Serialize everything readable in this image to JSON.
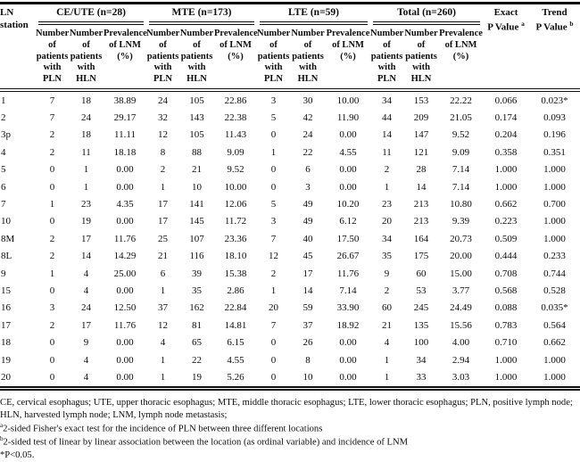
{
  "table": {
    "station_header": "LN station",
    "groups": [
      {
        "label": "CE/UTE (n=28)"
      },
      {
        "label": "MTE (n=173)"
      },
      {
        "label": "LTE (n=59)"
      },
      {
        "label": "Total (n=260)"
      }
    ],
    "subheaders": [
      "Number of patients with PLN",
      "Number of patients with HLN",
      "Prevalence of LNM (%)"
    ],
    "exact_p": {
      "line1": "Exact",
      "line2": "P Value",
      "sup": "a"
    },
    "trend_p": {
      "line1": "Trend",
      "line2": "P Value",
      "sup": "b"
    },
    "rows": [
      {
        "station": "1",
        "values": [
          "7",
          "18",
          "38.89",
          "24",
          "105",
          "22.86",
          "3",
          "30",
          "10.00",
          "34",
          "153",
          "22.22",
          "0.066",
          "0.023*"
        ]
      },
      {
        "station": "2",
        "values": [
          "7",
          "24",
          "29.17",
          "32",
          "143",
          "22.38",
          "5",
          "42",
          "11.90",
          "44",
          "209",
          "21.05",
          "0.174",
          "0.093"
        ]
      },
      {
        "station": "3p",
        "values": [
          "2",
          "18",
          "11.11",
          "12",
          "105",
          "11.43",
          "0",
          "24",
          "0.00",
          "14",
          "147",
          "9.52",
          "0.204",
          "0.196"
        ]
      },
      {
        "station": "4",
        "values": [
          "2",
          "11",
          "18.18",
          "8",
          "88",
          "9.09",
          "1",
          "22",
          "4.55",
          "11",
          "121",
          "9.09",
          "0.358",
          "0.351"
        ]
      },
      {
        "station": "5",
        "values": [
          "0",
          "1",
          "0.00",
          "2",
          "21",
          "9.52",
          "0",
          "6",
          "0.00",
          "2",
          "28",
          "7.14",
          "1.000",
          "1.000"
        ]
      },
      {
        "station": "6",
        "values": [
          "0",
          "1",
          "0.00",
          "1",
          "10",
          "10.00",
          "0",
          "3",
          "0.00",
          "1",
          "14",
          "7.14",
          "1.000",
          "1.000"
        ]
      },
      {
        "station": "7",
        "values": [
          "1",
          "23",
          "4.35",
          "17",
          "141",
          "12.06",
          "5",
          "49",
          "10.20",
          "23",
          "213",
          "10.80",
          "0.662",
          "0.700"
        ]
      },
      {
        "station": "10",
        "values": [
          "0",
          "19",
          "0.00",
          "17",
          "145",
          "11.72",
          "3",
          "49",
          "6.12",
          "20",
          "213",
          "9.39",
          "0.223",
          "1.000"
        ]
      },
      {
        "station": "8M",
        "values": [
          "2",
          "17",
          "11.76",
          "25",
          "107",
          "23.36",
          "7",
          "40",
          "17.50",
          "34",
          "164",
          "20.73",
          "0.509",
          "1.000"
        ]
      },
      {
        "station": "8L",
        "values": [
          "2",
          "14",
          "14.29",
          "21",
          "116",
          "18.10",
          "12",
          "45",
          "26.67",
          "35",
          "175",
          "20.00",
          "0.444",
          "0.233"
        ]
      },
      {
        "station": "9",
        "values": [
          "1",
          "4",
          "25.00",
          "6",
          "39",
          "15.38",
          "2",
          "17",
          "11.76",
          "9",
          "60",
          "15.00",
          "0.708",
          "0.744"
        ]
      },
      {
        "station": "15",
        "values": [
          "0",
          "4",
          "0.00",
          "1",
          "35",
          "2.86",
          "1",
          "14",
          "7.14",
          "2",
          "53",
          "3.77",
          "0.568",
          "0.528"
        ]
      },
      {
        "station": "16",
        "values": [
          "3",
          "24",
          "12.50",
          "37",
          "162",
          "22.84",
          "20",
          "59",
          "33.90",
          "60",
          "245",
          "24.49",
          "0.088",
          "0.035*"
        ]
      },
      {
        "station": "17",
        "values": [
          "2",
          "17",
          "11.76",
          "12",
          "81",
          "14.81",
          "7",
          "37",
          "18.92",
          "21",
          "135",
          "15.56",
          "0.783",
          "0.564"
        ]
      },
      {
        "station": "18",
        "values": [
          "0",
          "9",
          "0.00",
          "4",
          "65",
          "6.15",
          "0",
          "26",
          "0.00",
          "4",
          "100",
          "4.00",
          "0.710",
          "0.662"
        ]
      },
      {
        "station": "19",
        "values": [
          "0",
          "4",
          "0.00",
          "1",
          "22",
          "4.55",
          "0",
          "8",
          "0.00",
          "1",
          "34",
          "2.94",
          "1.000",
          "1.000"
        ]
      },
      {
        "station": "20",
        "values": [
          "0",
          "4",
          "0.00",
          "1",
          "19",
          "5.26",
          "0",
          "10",
          "0.00",
          "1",
          "33",
          "3.03",
          "1.000",
          "1.000"
        ]
      }
    ]
  },
  "footnotes": {
    "abbreviations": "CE, cervical esophagus; UTE, upper thoracic esophagus; MTE, middle thoracic esophagus; LTE, lower thoracic esophagus; PLN, positive lymph node; HLN, harvested lymph node; LNM, lymph node metastasis;",
    "a_sup": "a",
    "a_text": "2-sided Fisher's exact test for the incidence of PLN between three different locations",
    "b_sup": "b",
    "b_text": "2-sided test of linear by linear association between the location (as ordinal variable) and incidence of LNM",
    "significance": "*P<0.05."
  }
}
